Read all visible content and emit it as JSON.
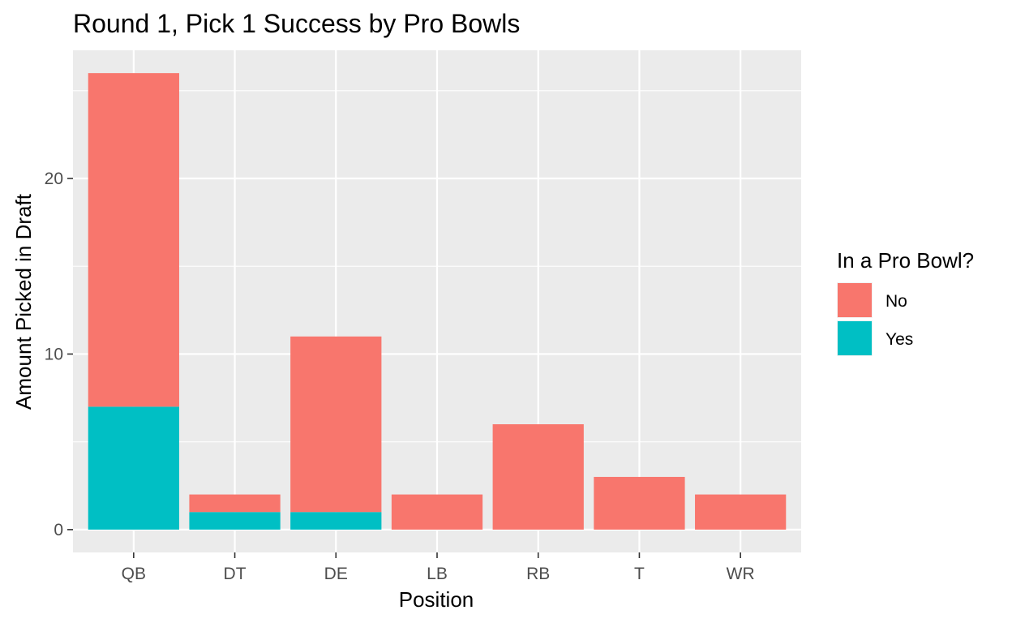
{
  "chart_data": {
    "type": "bar",
    "stacked": true,
    "title": "Round 1, Pick 1 Success by Pro Bowls",
    "xlabel": "Position",
    "ylabel": "Amount Picked in Draft",
    "categories": [
      "QB",
      "DT",
      "DE",
      "LB",
      "RB",
      "T",
      "WR"
    ],
    "series": [
      {
        "name": "No",
        "color": "#F8766D",
        "values": [
          19,
          1,
          10,
          2,
          6,
          3,
          2
        ]
      },
      {
        "name": "Yes",
        "color": "#00BFC4",
        "values": [
          7,
          1,
          1,
          0,
          0,
          0,
          0
        ]
      }
    ],
    "ylim": [
      -1.3,
      27.3
    ],
    "yticks": [
      0,
      10,
      20
    ],
    "ytick_labels": [
      "0",
      "10",
      "20"
    ],
    "grid": true,
    "legend": {
      "title": "In a Pro Bowl?",
      "position": "right"
    },
    "panel_background": "#EBEBEB",
    "grid_color": "#FFFFFF"
  }
}
